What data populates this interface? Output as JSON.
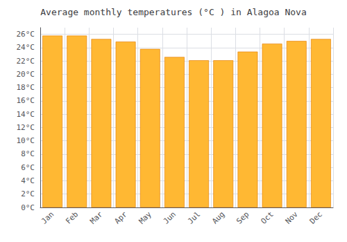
{
  "chart_data": {
    "type": "bar",
    "title": "Average monthly temperatures (°C ) in Alagoa Nova",
    "categories": [
      "Jan",
      "Feb",
      "Mar",
      "Apr",
      "May",
      "Jun",
      "Jul",
      "Aug",
      "Sep",
      "Oct",
      "Nov",
      "Dec"
    ],
    "values": [
      25.8,
      25.8,
      25.3,
      24.9,
      23.8,
      22.6,
      22.1,
      22.1,
      23.4,
      24.6,
      25.0,
      25.3
    ],
    "color": "#FFB833",
    "ylim": [
      0,
      27
    ],
    "yticks": [
      {
        "value": 0,
        "label": "0°C"
      },
      {
        "value": 2,
        "label": "2°C"
      },
      {
        "value": 4,
        "label": "4°C"
      },
      {
        "value": 6,
        "label": "6°C"
      },
      {
        "value": 8,
        "label": "8°C"
      },
      {
        "value": 10,
        "label": "10°C"
      },
      {
        "value": 12,
        "label": "12°C"
      },
      {
        "value": 14,
        "label": "14°C"
      },
      {
        "value": 16,
        "label": "16°C"
      },
      {
        "value": 18,
        "label": "18°C"
      },
      {
        "value": 20,
        "label": "20°C"
      },
      {
        "value": 22,
        "label": "22°C"
      },
      {
        "value": 24,
        "label": "24°C"
      },
      {
        "value": 26,
        "label": "26°C"
      }
    ],
    "grid": true
  }
}
